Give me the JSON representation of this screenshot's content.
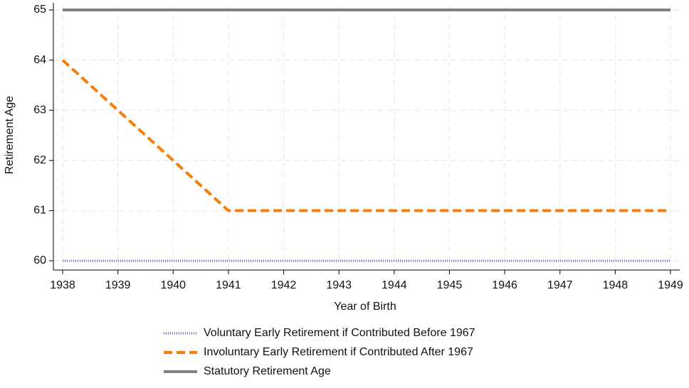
{
  "chart_data": {
    "type": "line",
    "x_label": "Year of Birth",
    "y_label": "Retirement Age",
    "x": [
      1938,
      1939,
      1940,
      1941,
      1942,
      1943,
      1944,
      1945,
      1946,
      1947,
      1948,
      1949
    ],
    "series": [
      {
        "name": "Voluntary Early Retirement if Contributed Before 1967",
        "color": "#5b5bd6",
        "dash": "1,2",
        "width": 3,
        "values": [
          60,
          60,
          60,
          60,
          60,
          60,
          60,
          60,
          60,
          60,
          60,
          60
        ]
      },
      {
        "name": "Involuntary Early Retirement if Contributed After 1967",
        "color": "#f57f0a",
        "dash": "12,6",
        "width": 4,
        "values": [
          64,
          63,
          62,
          61,
          61,
          61,
          61,
          61,
          61,
          61,
          61,
          61
        ]
      },
      {
        "name": "Statutory Retirement Age",
        "color": "#808080",
        "dash": "none",
        "width": 4,
        "values": [
          65,
          65,
          65,
          65,
          65,
          65,
          65,
          65,
          65,
          65,
          65,
          65
        ]
      }
    ],
    "xlim": [
      1938,
      1949
    ],
    "ylim": [
      60,
      65
    ],
    "xticks": [
      1938,
      1939,
      1940,
      1941,
      1942,
      1943,
      1944,
      1945,
      1946,
      1947,
      1948,
      1949
    ],
    "yticks": [
      60,
      61,
      62,
      63,
      64,
      65
    ],
    "grid": true,
    "legend": "bottom"
  }
}
